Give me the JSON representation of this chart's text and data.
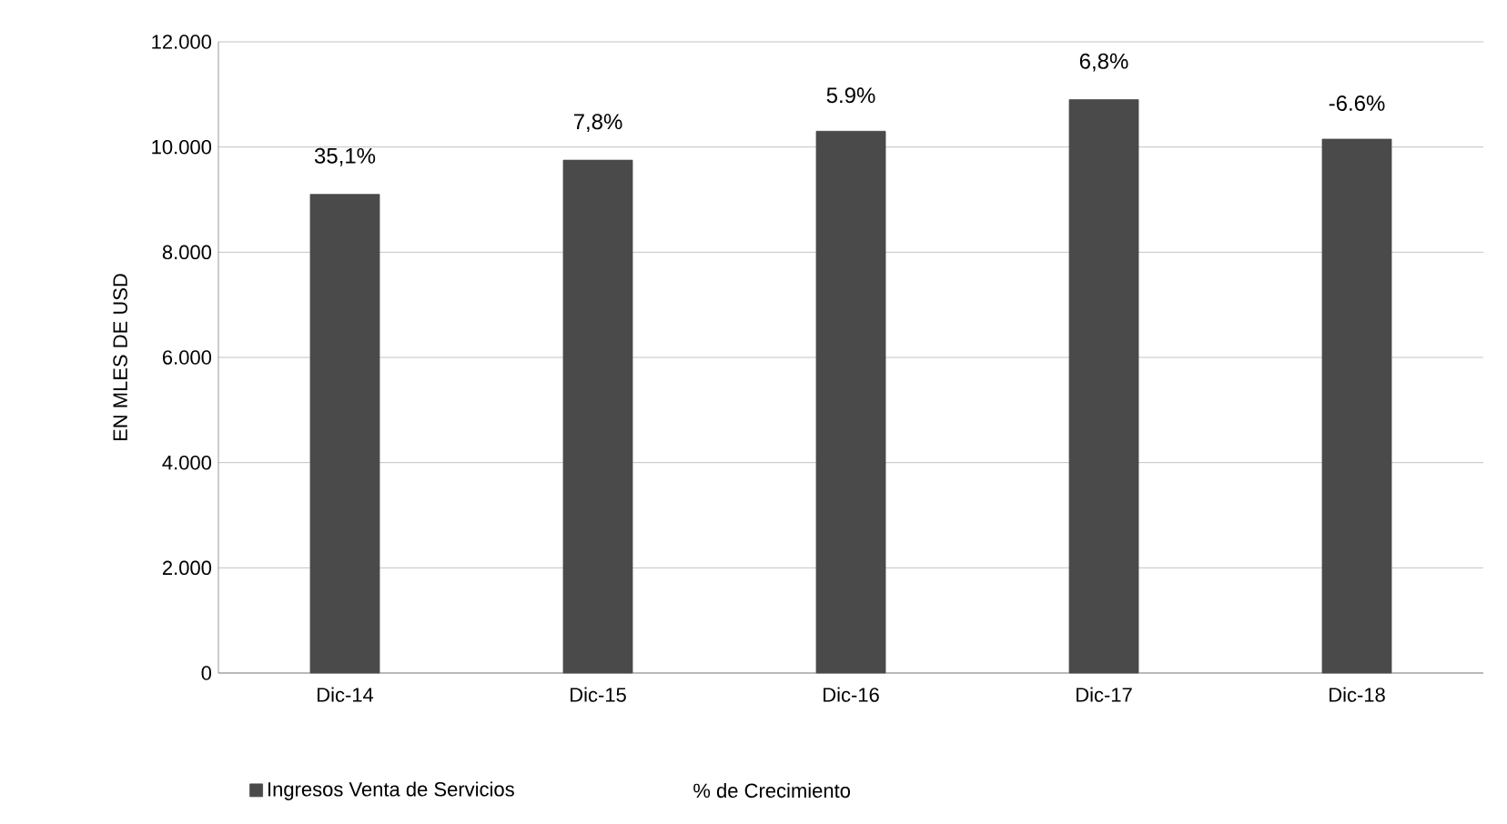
{
  "chart_data": {
    "type": "bar",
    "ylabel": "EN MLES DE USD",
    "categories": [
      "Dic-14",
      "Dic-15",
      "Dic-16",
      "Dic-17",
      "Dic-18"
    ],
    "series": [
      {
        "name": "Ingresos Venta de Servicios",
        "color": "#4a4a4a",
        "values": [
          9100,
          9750,
          10300,
          10900,
          10150
        ]
      }
    ],
    "ylim": [
      0,
      12000
    ],
    "yticks": [
      {
        "value": 0,
        "label": "0"
      },
      {
        "value": 2000,
        "label": "2.000"
      },
      {
        "value": 4000,
        "label": "4.000"
      },
      {
        "value": 6000,
        "label": "6.000"
      },
      {
        "value": 8000,
        "label": "8.000"
      },
      {
        "value": 10000,
        "label": "10.000"
      },
      {
        "value": 12000,
        "label": "12.000"
      }
    ],
    "grid": "y",
    "legend": "bottom",
    "annotations": [
      {
        "text": "35,1%",
        "x": "Dic-14",
        "y": 9100
      },
      {
        "text": "7,8%",
        "x": "Dic-15",
        "y": 9750
      },
      {
        "text": "5.9%",
        "x": "Dic-16",
        "y": 10300
      },
      {
        "text": "6,8%",
        "x": "Dic-17",
        "y": 10900
      },
      {
        "text": "-6.6%",
        "x": "Dic-18",
        "y": 10150
      },
      "% de Crecimiento"
    ]
  }
}
